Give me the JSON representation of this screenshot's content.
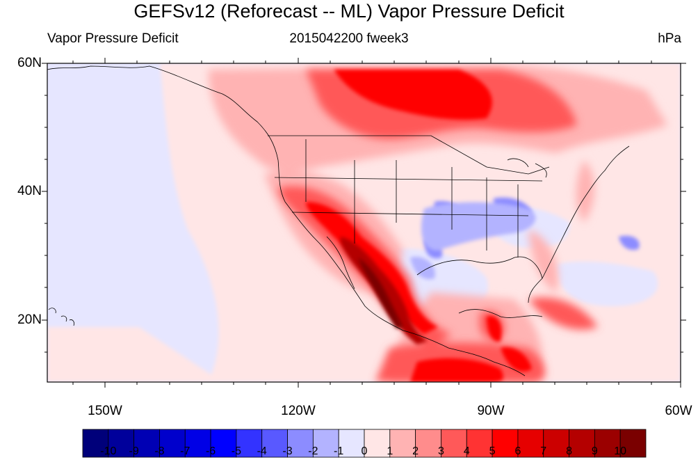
{
  "title": "GEFSv12 (Reforecast -- ML) Vapor Pressure Deficit",
  "subtitle_left": "Vapor Pressure Deficit",
  "subtitle_center": "2015042200 fweek3",
  "subtitle_right": "hPa",
  "lat_labels": [
    "60N",
    "40N",
    "20N"
  ],
  "lon_labels": [
    "150W",
    "120W",
    "90W",
    "60W"
  ],
  "colorbar": {
    "labels": [
      "-10",
      "-9",
      "-8",
      "-7",
      "-6",
      "-5",
      "-4",
      "-3",
      "-2",
      "-1",
      "0",
      "1",
      "2",
      "3",
      "4",
      "5",
      "6",
      "7",
      "8",
      "9",
      "10"
    ],
    "colors": [
      "#00007a",
      "#00009b",
      "#0000b4",
      "#0000cc",
      "#0000e6",
      "#0000ff",
      "#3333ff",
      "#5959ff",
      "#8c8cff",
      "#b3b3ff",
      "#e6e6ff",
      "#ffe6e6",
      "#ffb3b3",
      "#ff8c8c",
      "#ff5959",
      "#ff3333",
      "#ff0000",
      "#e60000",
      "#cc0000",
      "#b40000",
      "#9b0000",
      "#7a0000"
    ]
  }
}
